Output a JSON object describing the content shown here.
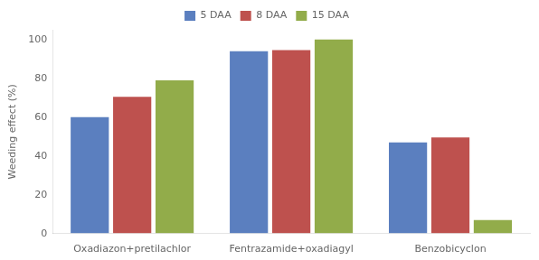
{
  "chart_data": {
    "type": "bar",
    "categories": [
      "Oxadiazon+pretilachlor",
      "Fentrazamide+oxadiagyl",
      "Benzobicyclon"
    ],
    "series": [
      {
        "name": "5 DAA",
        "color": "#5B7FBF",
        "values": [
          60.0,
          94.0,
          47.0
        ]
      },
      {
        "name": "8 DAA",
        "color": "#BE514E",
        "values": [
          70.5,
          94.5,
          49.5
        ]
      },
      {
        "name": "15 DAA",
        "color": "#92AC4A",
        "values": [
          79.0,
          100.0,
          7.0
        ]
      }
    ],
    "ylabel": "Weeding effect (%)",
    "ylim": [
      0,
      105
    ],
    "yticks": [
      0,
      20,
      40,
      60,
      80,
      100
    ],
    "grid": false,
    "legend": "top"
  }
}
